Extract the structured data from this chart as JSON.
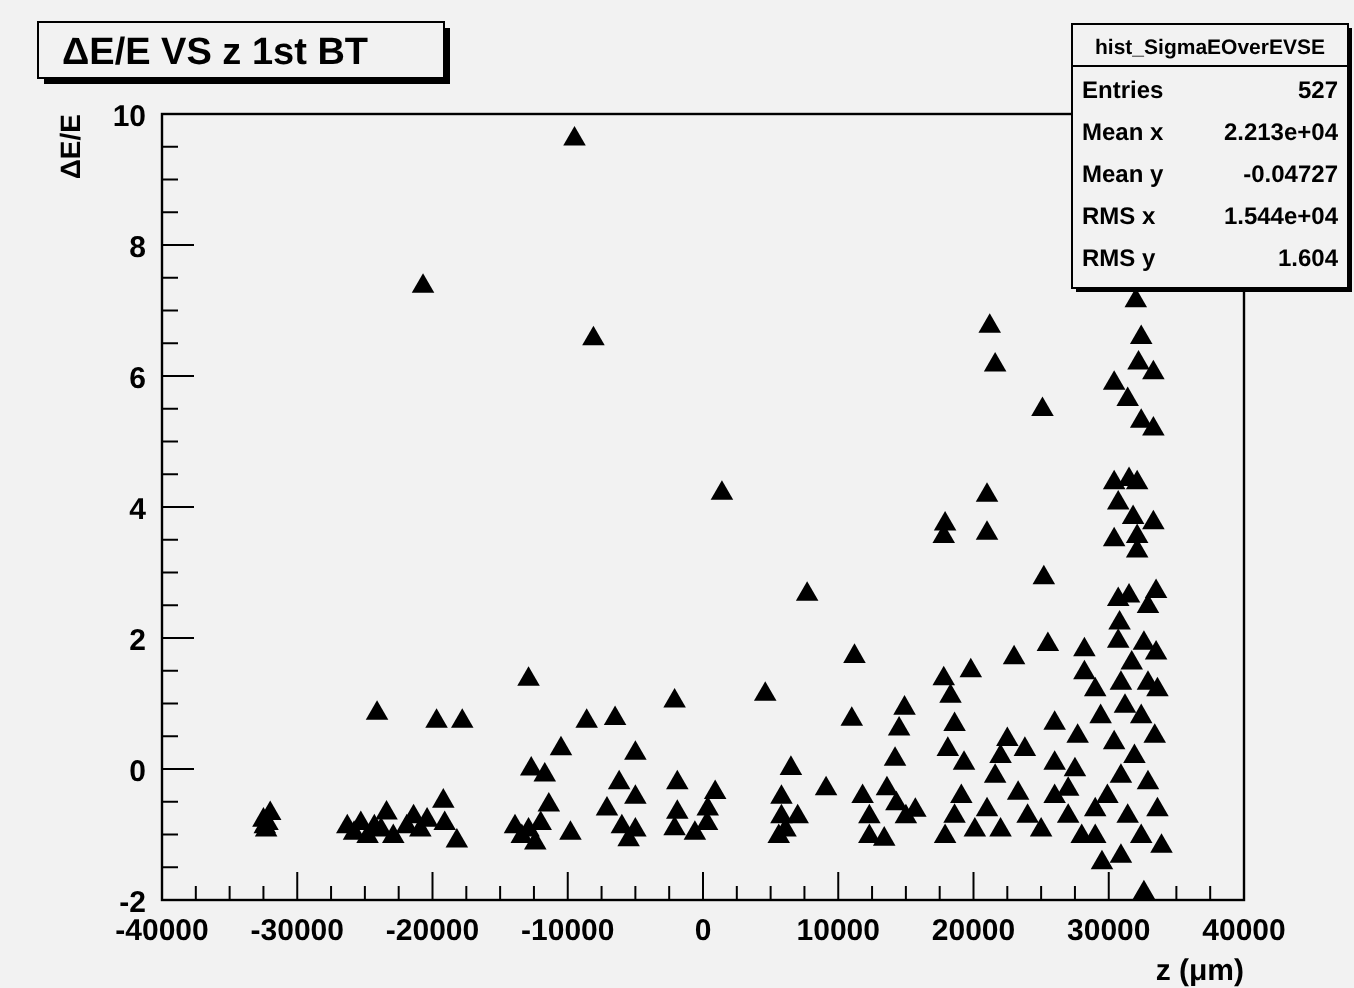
{
  "chart_data": {
    "type": "scatter",
    "title": "ΔE/E VS z 1st BT",
    "xlabel": "z (μm)",
    "ylabel": "ΔE/E",
    "annotations": [
      "hist_SigmaEOverEVSE",
      "Entries 527",
      "Mean x 2.213e+04",
      "Mean y -0.04727",
      "RMS x 1.544e+04",
      "RMS y 1.604"
    ],
    "marker": "triangle",
    "xlim": [
      -40000,
      40000
    ],
    "ylim": [
      -2,
      10
    ],
    "xticks": [
      -40000,
      {
        "value": -37500,
        "label": null
      },
      {
        "value": -35000,
        "label": null
      },
      {
        "value": -32500,
        "label": null
      },
      -30000,
      {
        "value": -27500,
        "label": null
      },
      {
        "value": -25000,
        "label": null
      },
      {
        "value": -22500,
        "label": null
      },
      -20000,
      {
        "value": -17500,
        "label": null
      },
      {
        "value": -15000,
        "label": null
      },
      {
        "value": -12500,
        "label": null
      },
      -10000,
      {
        "value": -7500,
        "label": null
      },
      {
        "value": -5000,
        "label": null
      },
      {
        "value": -2500,
        "label": null
      },
      0,
      {
        "value": 2500,
        "label": null
      },
      {
        "value": 5000,
        "label": null
      },
      {
        "value": 7500,
        "label": null
      },
      10000,
      {
        "value": 12500,
        "label": null
      },
      {
        "value": 15000,
        "label": null
      },
      {
        "value": 17500,
        "label": null
      },
      20000,
      {
        "value": 22500,
        "label": null
      },
      {
        "value": 25000,
        "label": null
      },
      {
        "value": 27500,
        "label": null
      },
      30000,
      {
        "value": 32500,
        "label": null
      },
      {
        "value": 35000,
        "label": null
      },
      {
        "value": 37500,
        "label": null
      },
      40000
    ],
    "yticks": [
      -2,
      {
        "value": -1.5,
        "label": null
      },
      {
        "value": -1,
        "label": null
      },
      {
        "value": -0.5,
        "label": null
      },
      0,
      {
        "value": 0.5,
        "label": null
      },
      {
        "value": 1,
        "label": null
      },
      {
        "value": 1.5,
        "label": null
      },
      2,
      {
        "value": 2.5,
        "label": null
      },
      {
        "value": 3,
        "label": null
      },
      {
        "value": 3.5,
        "label": null
      },
      4,
      {
        "value": 4.5,
        "label": null
      },
      {
        "value": 5,
        "label": null
      },
      {
        "value": 5.5,
        "label": null
      },
      6,
      {
        "value": 6.5,
        "label": null
      },
      {
        "value": 7,
        "label": null
      },
      {
        "value": 7.5,
        "label": null
      },
      8,
      {
        "value": 8.5,
        "label": null
      },
      {
        "value": 9,
        "label": null
      },
      {
        "value": 9.5,
        "label": null
      },
      10
    ],
    "series": [
      {
        "color": "#000000",
        "x": [
          -9500,
          -8100,
          -20700,
          1400,
          -32500,
          -32300,
          -32000,
          -32200,
          -32400,
          -26300,
          -25800,
          -25300,
          -24800,
          -24300,
          -23800,
          -23400,
          -22900,
          -21900,
          -21400,
          -20900,
          -20400,
          -24100,
          -19700,
          -17800,
          -19200,
          -19100,
          -18200,
          -12900,
          -12700,
          -11700,
          -10500,
          -11400,
          -13900,
          -13400,
          -12900,
          -12400,
          -12000,
          -9800,
          -8600,
          -6500,
          -6200,
          -7100,
          -6000,
          -5500,
          -5000,
          -5000,
          -5000,
          -2100,
          -1900,
          -1900,
          -2100,
          -600,
          300,
          900,
          350,
          7700,
          4600,
          11200,
          11000,
          6500,
          5800,
          5800,
          6100,
          5600,
          7000,
          9100,
          11800,
          12300,
          12300,
          13400,
          14900,
          14500,
          14200,
          13600,
          14300,
          15000,
          15700,
          17900,
          17800,
          21000,
          21000,
          21200,
          21600,
          25100,
          25200,
          25500,
          23000,
          19800,
          17800,
          18300,
          18600,
          18100,
          19300,
          22500,
          23800,
          26000,
          27700,
          28200,
          28200,
          29000,
          29400,
          23300,
          29500,
          32000,
          32400,
          32200,
          33300,
          30400,
          31400,
          32400,
          33300,
          30400,
          31500,
          32100,
          30700,
          31800,
          33300,
          30400,
          32100,
          32100,
          30700,
          31500,
          32900,
          33500,
          30800,
          30700,
          32600,
          33500,
          30900,
          31700,
          32900,
          33600,
          31200,
          32400,
          33400,
          30400,
          31900,
          30900,
          32900,
          29900,
          33600,
          31400,
          32400,
          33900,
          30900,
          28000,
          27000,
          26000,
          25000,
          24000,
          22000,
          21000,
          20100,
          18600,
          17900,
          19100,
          22000,
          21600,
          26000,
          27500,
          27000,
          29000,
          29000,
          32600
        ],
        "values": [
          9.65,
          6.6,
          7.4,
          4.24,
          -0.75,
          -0.9,
          -0.65,
          -0.8,
          -0.85,
          -0.85,
          -0.95,
          -0.8,
          -1.0,
          -0.85,
          -0.9,
          -0.64,
          -1.0,
          -0.85,
          -0.7,
          -0.9,
          -0.75,
          0.88,
          0.76,
          0.76,
          -0.46,
          -0.8,
          -1.07,
          1.4,
          0.03,
          -0.06,
          0.34,
          -0.52,
          -0.85,
          -1.0,
          -0.9,
          -1.1,
          -0.8,
          -0.95,
          0.76,
          0.8,
          -0.18,
          -0.58,
          -0.85,
          -1.05,
          -0.9,
          0.27,
          -0.4,
          1.07,
          -0.18,
          -0.63,
          -0.88,
          -0.95,
          -0.8,
          -0.33,
          -0.58,
          2.7,
          1.17,
          1.75,
          0.79,
          0.04,
          -0.4,
          -0.7,
          -0.9,
          -1.0,
          -0.7,
          -0.27,
          -0.39,
          -0.7,
          -1.0,
          -1.04,
          0.96,
          0.64,
          0.18,
          -0.27,
          -0.5,
          -0.7,
          -0.6,
          3.77,
          3.58,
          4.21,
          3.63,
          6.79,
          6.2,
          5.52,
          2.95,
          1.93,
          1.73,
          1.53,
          1.41,
          1.14,
          0.71,
          0.33,
          0.12,
          0.48,
          0.33,
          0.73,
          0.53,
          1.85,
          1.5,
          1.24,
          0.83,
          -0.34,
          -1.4,
          7.18,
          6.62,
          6.23,
          6.08,
          5.92,
          5.67,
          5.34,
          5.22,
          4.4,
          4.45,
          4.4,
          4.09,
          3.87,
          3.79,
          3.53,
          3.58,
          3.36,
          2.62,
          2.67,
          2.51,
          2.74,
          2.26,
          1.98,
          1.95,
          1.8,
          1.34,
          1.65,
          1.34,
          1.24,
          0.99,
          0.83,
          0.53,
          0.43,
          0.22,
          -0.08,
          -0.18,
          -0.39,
          -0.59,
          -0.69,
          -1.0,
          -1.15,
          -1.3,
          -1.0,
          -0.69,
          -0.39,
          -0.9,
          -0.69,
          -0.9,
          -0.59,
          -0.9,
          -0.69,
          -1.0,
          -0.39,
          0.22,
          -0.08,
          0.12,
          0.02,
          -0.28,
          -0.59,
          -1.0,
          -1.86
        ]
      }
    ]
  }
}
